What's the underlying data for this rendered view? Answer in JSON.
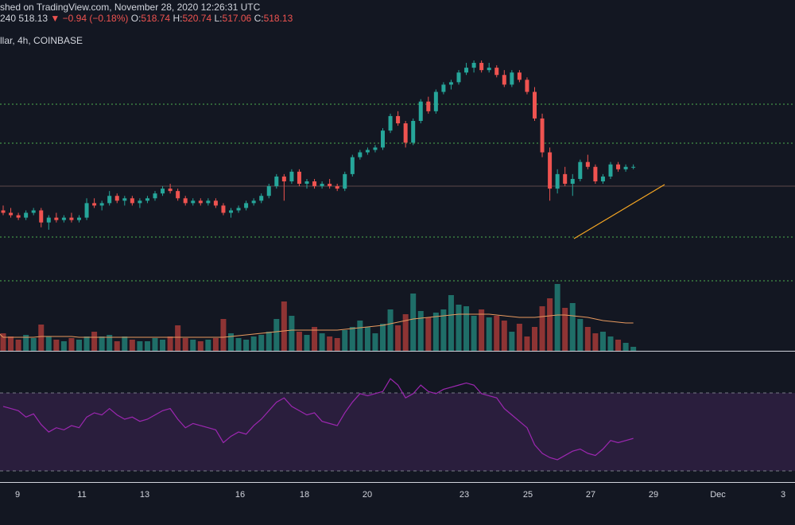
{
  "header": {
    "published": "shed on TradingView.com, November 28, 2020 12:26:31 UTC",
    "interval_code": "240",
    "last_price": "518.13",
    "change": "−0.94 (−0.18%)",
    "open_label": "O:",
    "open": "518.74",
    "high_label": "H:",
    "high": "520.74",
    "low_label": "L:",
    "low": "517.06",
    "close_label": "C:",
    "close": "518.13",
    "symbol_line": "llar, 4h, COINBASE"
  },
  "colors": {
    "background": "#131722",
    "up": "#26a69a",
    "down": "#ef5350",
    "level_line": "#4caf50",
    "trendline": "#f5a623",
    "volume_ma": "#e89a5f",
    "rsi_line": "#9c27b0",
    "rsi_band": "#2a1e3d"
  },
  "chart_data": {
    "type": "candlestick",
    "interval": "4h",
    "x_tick_labels": [
      "9",
      "11",
      "13",
      "16",
      "18",
      "20",
      "23",
      "25",
      "27",
      "29",
      "Dec",
      "3"
    ],
    "candles_ohlc_relative": [
      [
        0.38,
        0.4,
        0.36,
        0.37
      ],
      [
        0.37,
        0.39,
        0.35,
        0.36
      ],
      [
        0.36,
        0.37,
        0.34,
        0.35
      ],
      [
        0.35,
        0.38,
        0.34,
        0.37
      ],
      [
        0.37,
        0.39,
        0.36,
        0.38
      ],
      [
        0.38,
        0.39,
        0.31,
        0.33
      ],
      [
        0.33,
        0.36,
        0.3,
        0.35
      ],
      [
        0.35,
        0.37,
        0.33,
        0.34
      ],
      [
        0.34,
        0.36,
        0.33,
        0.35
      ],
      [
        0.35,
        0.37,
        0.33,
        0.34
      ],
      [
        0.34,
        0.36,
        0.33,
        0.35
      ],
      [
        0.35,
        0.43,
        0.34,
        0.41
      ],
      [
        0.41,
        0.43,
        0.39,
        0.4
      ],
      [
        0.4,
        0.42,
        0.38,
        0.41
      ],
      [
        0.41,
        0.46,
        0.4,
        0.44
      ],
      [
        0.44,
        0.45,
        0.41,
        0.42
      ],
      [
        0.42,
        0.44,
        0.4,
        0.43
      ],
      [
        0.43,
        0.44,
        0.4,
        0.41
      ],
      [
        0.41,
        0.43,
        0.39,
        0.42
      ],
      [
        0.42,
        0.44,
        0.41,
        0.43
      ],
      [
        0.43,
        0.46,
        0.42,
        0.45
      ],
      [
        0.45,
        0.48,
        0.44,
        0.47
      ],
      [
        0.47,
        0.49,
        0.45,
        0.46
      ],
      [
        0.46,
        0.47,
        0.42,
        0.43
      ],
      [
        0.43,
        0.44,
        0.4,
        0.41
      ],
      [
        0.41,
        0.43,
        0.4,
        0.42
      ],
      [
        0.42,
        0.43,
        0.4,
        0.41
      ],
      [
        0.41,
        0.43,
        0.4,
        0.42
      ],
      [
        0.42,
        0.43,
        0.39,
        0.4
      ],
      [
        0.4,
        0.41,
        0.36,
        0.37
      ],
      [
        0.37,
        0.39,
        0.35,
        0.38
      ],
      [
        0.38,
        0.4,
        0.37,
        0.39
      ],
      [
        0.39,
        0.42,
        0.38,
        0.41
      ],
      [
        0.41,
        0.43,
        0.4,
        0.42
      ],
      [
        0.42,
        0.45,
        0.41,
        0.44
      ],
      [
        0.44,
        0.49,
        0.43,
        0.48
      ],
      [
        0.48,
        0.53,
        0.47,
        0.52
      ],
      [
        0.52,
        0.53,
        0.42,
        0.5
      ],
      [
        0.5,
        0.55,
        0.49,
        0.54
      ],
      [
        0.54,
        0.55,
        0.48,
        0.49
      ],
      [
        0.49,
        0.51,
        0.47,
        0.5
      ],
      [
        0.5,
        0.51,
        0.47,
        0.48
      ],
      [
        0.48,
        0.5,
        0.47,
        0.49
      ],
      [
        0.49,
        0.51,
        0.47,
        0.48
      ],
      [
        0.48,
        0.49,
        0.46,
        0.47
      ],
      [
        0.47,
        0.54,
        0.46,
        0.53
      ],
      [
        0.53,
        0.61,
        0.52,
        0.6
      ],
      [
        0.6,
        0.63,
        0.59,
        0.62
      ],
      [
        0.62,
        0.64,
        0.61,
        0.63
      ],
      [
        0.63,
        0.65,
        0.62,
        0.64
      ],
      [
        0.64,
        0.72,
        0.63,
        0.71
      ],
      [
        0.71,
        0.78,
        0.7,
        0.77
      ],
      [
        0.77,
        0.79,
        0.73,
        0.74
      ],
      [
        0.74,
        0.75,
        0.64,
        0.66
      ],
      [
        0.66,
        0.76,
        0.65,
        0.75
      ],
      [
        0.75,
        0.84,
        0.74,
        0.83
      ],
      [
        0.83,
        0.85,
        0.78,
        0.79
      ],
      [
        0.79,
        0.88,
        0.78,
        0.87
      ],
      [
        0.87,
        0.91,
        0.86,
        0.9
      ],
      [
        0.9,
        0.92,
        0.88,
        0.91
      ],
      [
        0.91,
        0.96,
        0.9,
        0.95
      ],
      [
        0.95,
        0.99,
        0.94,
        0.97
      ],
      [
        0.97,
        1.0,
        0.95,
        0.99
      ],
      [
        0.99,
        1.0,
        0.95,
        0.96
      ],
      [
        0.96,
        0.99,
        0.95,
        0.97
      ],
      [
        0.97,
        0.98,
        0.93,
        0.94
      ],
      [
        0.94,
        0.96,
        0.89,
        0.9
      ],
      [
        0.9,
        0.96,
        0.89,
        0.95
      ],
      [
        0.95,
        0.96,
        0.91,
        0.92
      ],
      [
        0.92,
        0.93,
        0.86,
        0.87
      ],
      [
        0.87,
        0.89,
        0.75,
        0.76
      ],
      [
        0.76,
        0.78,
        0.6,
        0.62
      ],
      [
        0.62,
        0.64,
        0.42,
        0.47
      ],
      [
        0.47,
        0.55,
        0.45,
        0.53
      ],
      [
        0.53,
        0.56,
        0.48,
        0.49
      ],
      [
        0.49,
        0.53,
        0.44,
        0.51
      ],
      [
        0.51,
        0.59,
        0.5,
        0.58
      ],
      [
        0.58,
        0.61,
        0.55,
        0.56
      ],
      [
        0.56,
        0.57,
        0.49,
        0.5
      ],
      [
        0.5,
        0.53,
        0.49,
        0.52
      ],
      [
        0.52,
        0.58,
        0.51,
        0.57
      ],
      [
        0.57,
        0.58,
        0.54,
        0.55
      ],
      [
        0.55,
        0.57,
        0.54,
        0.56
      ],
      [
        0.56,
        0.57,
        0.55,
        0.56
      ]
    ],
    "volume_relative": [
      0.22,
      0.18,
      0.14,
      0.2,
      0.16,
      0.33,
      0.18,
      0.14,
      0.12,
      0.16,
      0.14,
      0.18,
      0.24,
      0.18,
      0.2,
      0.12,
      0.18,
      0.14,
      0.12,
      0.12,
      0.16,
      0.14,
      0.18,
      0.32,
      0.16,
      0.14,
      0.12,
      0.14,
      0.16,
      0.4,
      0.22,
      0.16,
      0.14,
      0.18,
      0.2,
      0.24,
      0.4,
      0.62,
      0.44,
      0.24,
      0.2,
      0.3,
      0.22,
      0.18,
      0.16,
      0.26,
      0.3,
      0.38,
      0.3,
      0.22,
      0.34,
      0.52,
      0.32,
      0.46,
      0.72,
      0.5,
      0.42,
      0.48,
      0.52,
      0.7,
      0.58,
      0.56,
      0.44,
      0.52,
      0.42,
      0.44,
      0.38,
      0.24,
      0.34,
      0.18,
      0.3,
      0.56,
      0.66,
      0.84,
      0.54,
      0.6,
      0.4,
      0.3,
      0.22,
      0.24,
      0.18,
      0.14,
      0.1,
      0.05
    ],
    "rsi_relative": [
      0.62,
      0.6,
      0.58,
      0.52,
      0.55,
      0.45,
      0.38,
      0.42,
      0.4,
      0.44,
      0.42,
      0.52,
      0.56,
      0.54,
      0.6,
      0.54,
      0.5,
      0.52,
      0.48,
      0.5,
      0.54,
      0.58,
      0.6,
      0.5,
      0.42,
      0.46,
      0.44,
      0.42,
      0.4,
      0.28,
      0.34,
      0.38,
      0.36,
      0.44,
      0.5,
      0.58,
      0.66,
      0.7,
      0.62,
      0.58,
      0.54,
      0.56,
      0.48,
      0.46,
      0.44,
      0.56,
      0.66,
      0.74,
      0.72,
      0.74,
      0.76,
      0.88,
      0.82,
      0.7,
      0.74,
      0.82,
      0.76,
      0.74,
      0.78,
      0.8,
      0.82,
      0.84,
      0.82,
      0.74,
      0.72,
      0.7,
      0.6,
      0.54,
      0.48,
      0.42,
      0.26,
      0.18,
      0.14,
      0.12,
      0.16,
      0.2,
      0.22,
      0.18,
      0.16,
      0.22,
      0.3,
      0.28,
      0.3,
      0.32
    ],
    "volume_ma_relative": [
      0.17,
      0.17,
      0.17,
      0.17,
      0.17,
      0.18,
      0.18,
      0.18,
      0.18,
      0.18,
      0.17,
      0.17,
      0.17,
      0.17,
      0.17,
      0.17,
      0.17,
      0.17,
      0.17,
      0.17,
      0.17,
      0.17,
      0.17,
      0.17,
      0.17,
      0.17,
      0.17,
      0.17,
      0.17,
      0.17,
      0.18,
      0.19,
      0.2,
      0.21,
      0.22,
      0.23,
      0.24,
      0.25,
      0.26,
      0.26,
      0.26,
      0.26,
      0.26,
      0.26,
      0.26,
      0.27,
      0.28,
      0.29,
      0.3,
      0.31,
      0.32,
      0.34,
      0.36,
      0.38,
      0.4,
      0.41,
      0.42,
      0.43,
      0.44,
      0.45,
      0.46,
      0.46,
      0.46,
      0.46,
      0.46,
      0.45,
      0.44,
      0.43,
      0.42,
      0.42,
      0.42,
      0.43,
      0.44,
      0.45,
      0.45,
      0.44,
      0.43,
      0.42,
      0.4,
      0.38,
      0.37,
      0.36,
      0.35,
      0.35
    ]
  }
}
